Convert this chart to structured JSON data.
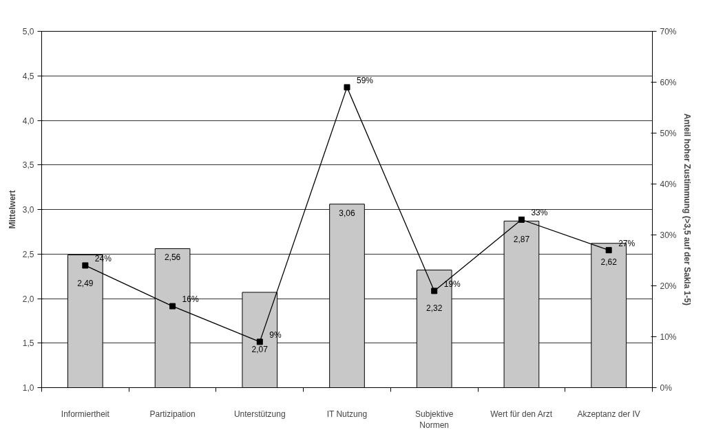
{
  "chart_data": {
    "type": "bar",
    "categories": [
      "Informiertheit",
      "Partizipation",
      "Unterstützung",
      "IT Nutzung",
      "Subjektive\nNormen",
      "Wert für den Arzt",
      "Akzeptanz der IV"
    ],
    "ylabel": "Mittelwert",
    "y2label": "Anteil hoher Zustimmung (>3,5 auf der Sakla 1-5)",
    "ylim": [
      1,
      5
    ],
    "yticks": [
      {
        "value": 1,
        "label": "1,0"
      },
      {
        "value": 1.5,
        "label": "1,5"
      },
      {
        "value": 2,
        "label": "2,0"
      },
      {
        "value": 2.5,
        "label": "2,5"
      },
      {
        "value": 3,
        "label": "3,0"
      },
      {
        "value": 3.5,
        "label": "3,5"
      },
      {
        "value": 4,
        "label": "4,0"
      },
      {
        "value": 4.5,
        "label": "4,5"
      },
      {
        "value": 5,
        "label": "5,0"
      }
    ],
    "y2lim": [
      0,
      70
    ],
    "y2ticks": [
      {
        "value": 0,
        "label": "0%"
      },
      {
        "value": 10,
        "label": "10%"
      },
      {
        "value": 20,
        "label": "20%"
      },
      {
        "value": 30,
        "label": "30%"
      },
      {
        "value": 40,
        "label": "40%"
      },
      {
        "value": 50,
        "label": "50%"
      },
      {
        "value": 60,
        "label": "60%"
      },
      {
        "value": 70,
        "label": "70%"
      }
    ],
    "grid": "y",
    "series": [
      {
        "color": "#c8c8c8",
        "values": [
          2.49,
          2.56,
          2.07,
          3.06,
          2.32,
          2.87,
          2.62
        ],
        "value_labels": [
          "2,49",
          "2,56",
          "2,07",
          "3,06",
          "2,32",
          "2,87",
          "2,62"
        ]
      },
      {
        "type": "line",
        "axis": "y2",
        "color": "#000000",
        "marker": "square",
        "line_style": "solid",
        "values": [
          24,
          16,
          9,
          59,
          19,
          33,
          27
        ],
        "value_labels": [
          "24%",
          "16%",
          "9%",
          "59%",
          "19%",
          "33%",
          "27%"
        ]
      }
    ]
  }
}
